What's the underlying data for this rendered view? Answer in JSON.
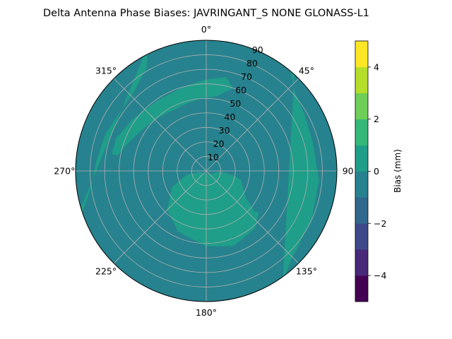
{
  "chart_data": {
    "type": "polar-contour",
    "title": "Delta Antenna Phase Biases: JAVRINGANT_S    NONE GLONASS-L1",
    "radial_ticks": [
      "10",
      "20",
      "30",
      "40",
      "50",
      "60",
      "70",
      "80",
      "90"
    ],
    "radial_range": [
      0,
      90
    ],
    "angle_ticks": [
      "0°",
      "45°",
      "90",
      "135°",
      "180°",
      "225°",
      "270°",
      "315°"
    ],
    "angle_direction": "clockwise",
    "angle_zero": "top",
    "grid": true,
    "colorbar": {
      "label": "Bias (mm)",
      "range": [
        -5,
        5
      ],
      "levels": [
        -5,
        -4.5,
        -4,
        -3.5,
        -3,
        -2.5,
        -2,
        -1.5,
        -1,
        -0.5,
        0,
        0.5,
        1,
        1.5,
        2,
        2.5,
        3,
        3.5,
        4,
        4.5,
        5
      ],
      "level_colors": [
        "#440154",
        "#472d7b",
        "#3b528b",
        "#2c728e",
        "#21918c",
        "#28ae80",
        "#5ec962",
        "#addc30",
        "#fde725"
      ],
      "band_values": [
        -4.5,
        -3.5,
        -2.5,
        -1.5,
        -0.5,
        0.5,
        1.5,
        2.5,
        3.5,
        4.5
      ],
      "band_colors": [
        "#440154",
        "#482878",
        "#3e4989",
        "#31688e",
        "#26828e",
        "#1f9e89",
        "#35b779",
        "#6ece58",
        "#b5de2b",
        "#fde725"
      ],
      "tick_values": [
        -4,
        -2,
        0,
        2,
        4
      ],
      "tick_labels": [
        "−4",
        "−2",
        "0",
        "2",
        "4"
      ]
    },
    "field": {
      "background_bias": -0.5,
      "regions": [
        {
          "bias": 0.5,
          "description": "outer ring at elevation 70-90 between azimuth 250 and 330"
        },
        {
          "bias": 0.5,
          "description": "ring at elevation 40-60 from azimuth 280 to 360 and 0 to 20"
        },
        {
          "bias": 0.5,
          "description": "central area from azimuth 90 to 260 at elevation 10-55"
        },
        {
          "bias": 0.5,
          "description": "outer band on east side at azimuth 40-140, elevation 75-90"
        },
        {
          "bias": -0.5,
          "description": "blob east of center at azimuth 95-130, elevation 25-55"
        }
      ]
    }
  }
}
